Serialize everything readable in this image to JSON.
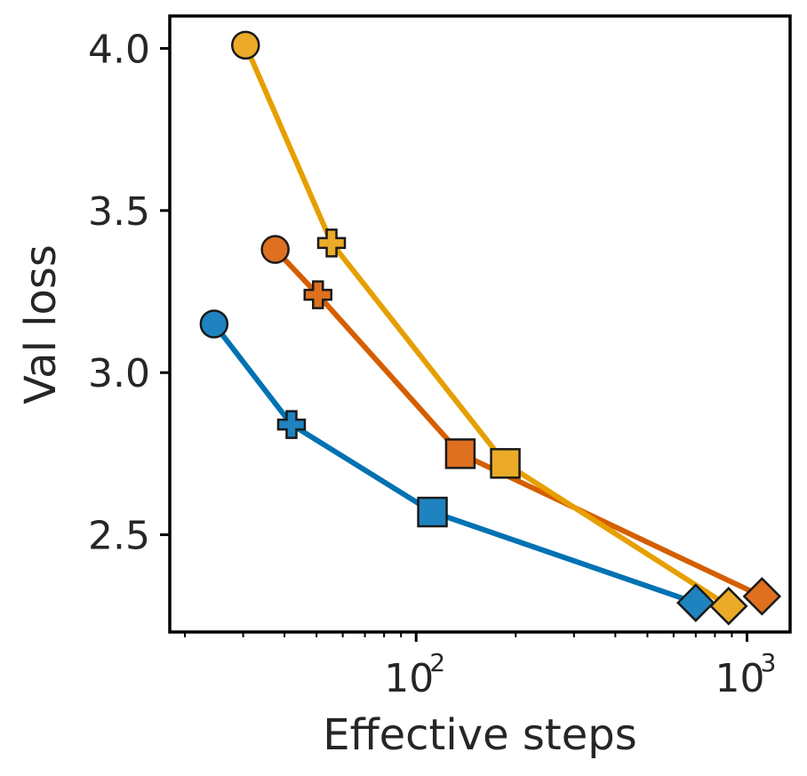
{
  "chart_data": {
    "type": "line",
    "title": "",
    "xlabel": "Effective steps",
    "ylabel": "Val loss",
    "xscale": "log",
    "xlim": [
      18,
      1350
    ],
    "ylim": [
      2.2,
      4.1
    ],
    "xticks": [
      {
        "value": 100,
        "base": "10",
        "exp": "2"
      },
      {
        "value": 1000,
        "base": "10",
        "exp": "3"
      }
    ],
    "yticks": [
      {
        "value": 2.5,
        "label": "2.5"
      },
      {
        "value": 3.0,
        "label": "3.0"
      },
      {
        "value": 3.5,
        "label": "3.5"
      },
      {
        "value": 4.0,
        "label": "4.0"
      }
    ],
    "grid": false,
    "legend": false,
    "marker_order": [
      "circle",
      "plus",
      "square",
      "diamond"
    ],
    "series": [
      {
        "name": "blue",
        "color": "#0072B2",
        "marker_fill": "#1F83C0",
        "points": [
          {
            "x": 24.5,
            "y": 3.15,
            "marker": "circle"
          },
          {
            "x": 42,
            "y": 2.84,
            "marker": "plus"
          },
          {
            "x": 112,
            "y": 2.57,
            "marker": "square"
          },
          {
            "x": 700,
            "y": 2.29,
            "marker": "diamond"
          }
        ]
      },
      {
        "name": "orange",
        "color": "#D55E00",
        "marker_fill": "#DE7020",
        "points": [
          {
            "x": 37.5,
            "y": 3.38,
            "marker": "circle"
          },
          {
            "x": 50.5,
            "y": 3.24,
            "marker": "plus"
          },
          {
            "x": 136,
            "y": 2.75,
            "marker": "square"
          },
          {
            "x": 1110,
            "y": 2.31,
            "marker": "diamond"
          }
        ]
      },
      {
        "name": "yellow",
        "color": "#E69F00",
        "marker_fill": "#EBAB28",
        "points": [
          {
            "x": 30.5,
            "y": 4.01,
            "marker": "circle"
          },
          {
            "x": 55.5,
            "y": 3.4,
            "marker": "plus"
          },
          {
            "x": 186,
            "y": 2.72,
            "marker": "square"
          },
          {
            "x": 880,
            "y": 2.28,
            "marker": "diamond"
          }
        ]
      }
    ]
  }
}
